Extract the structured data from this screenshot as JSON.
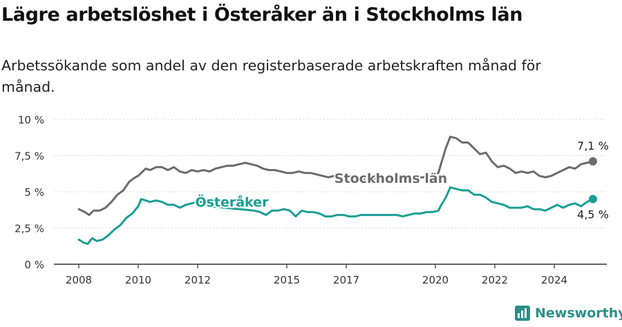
{
  "title": "Lägre arbetslöshet i Österåker än i Stockholms län",
  "subtitle": "Arbetssökande som andel av den registerbaserade arbetskraften månad för månad.",
  "brand": {
    "name": "Newsworthy"
  },
  "colors": {
    "stockholm": "#6b6b6b",
    "osteraker": "#1a9e94",
    "axis": "#333333",
    "brand": "#2c8f8a"
  },
  "chart_data": {
    "type": "line",
    "ylim": [
      0,
      10
    ],
    "xlim": [
      2007.5,
      2025.6
    ],
    "y_ticks": [
      {
        "value": 0,
        "label": "0 %"
      },
      {
        "value": 2.5,
        "label": "2,5 %"
      },
      {
        "value": 5,
        "label": "5 %"
      },
      {
        "value": 7.5,
        "label": "7,5 %"
      },
      {
        "value": 10,
        "label": "10 %"
      }
    ],
    "x_ticks": [
      {
        "value": 2008,
        "label": "2008"
      },
      {
        "value": 2010,
        "label": "2010"
      },
      {
        "value": 2012,
        "label": "2012"
      },
      {
        "value": 2015,
        "label": "2015"
      },
      {
        "value": 2017,
        "label": "2017"
      },
      {
        "value": 2020,
        "label": "2020"
      },
      {
        "value": 2022,
        "label": "2022"
      },
      {
        "value": 2024,
        "label": "2024"
      }
    ],
    "series": [
      {
        "name": "Stockholms län",
        "end_label": "7,1 %",
        "points": [
          [
            2008.0,
            3.8
          ],
          [
            2008.2,
            3.6
          ],
          [
            2008.35,
            3.4
          ],
          [
            2008.5,
            3.7
          ],
          [
            2008.7,
            3.7
          ],
          [
            2008.9,
            3.9
          ],
          [
            2009.1,
            4.3
          ],
          [
            2009.3,
            4.8
          ],
          [
            2009.5,
            5.1
          ],
          [
            2009.7,
            5.7
          ],
          [
            2009.9,
            6.0
          ],
          [
            2010.0,
            6.1
          ],
          [
            2010.1,
            6.3
          ],
          [
            2010.25,
            6.6
          ],
          [
            2010.4,
            6.5
          ],
          [
            2010.6,
            6.7
          ],
          [
            2010.8,
            6.7
          ],
          [
            2011.0,
            6.5
          ],
          [
            2011.2,
            6.7
          ],
          [
            2011.4,
            6.4
          ],
          [
            2011.6,
            6.3
          ],
          [
            2011.8,
            6.5
          ],
          [
            2012.0,
            6.4
          ],
          [
            2012.2,
            6.5
          ],
          [
            2012.4,
            6.4
          ],
          [
            2012.6,
            6.6
          ],
          [
            2012.8,
            6.7
          ],
          [
            2013.0,
            6.8
          ],
          [
            2013.2,
            6.8
          ],
          [
            2013.4,
            6.9
          ],
          [
            2013.6,
            7.0
          ],
          [
            2013.8,
            6.9
          ],
          [
            2014.0,
            6.8
          ],
          [
            2014.2,
            6.6
          ],
          [
            2014.4,
            6.5
          ],
          [
            2014.6,
            6.5
          ],
          [
            2014.8,
            6.4
          ],
          [
            2015.0,
            6.3
          ],
          [
            2015.2,
            6.3
          ],
          [
            2015.4,
            6.4
          ],
          [
            2015.6,
            6.3
          ],
          [
            2015.8,
            6.3
          ],
          [
            2016.0,
            6.2
          ],
          [
            2016.2,
            6.1
          ],
          [
            2016.4,
            6.0
          ],
          [
            2016.6,
            6.1
          ],
          [
            2016.8,
            6.0
          ],
          [
            2017.0,
            6.0
          ],
          [
            2017.2,
            6.0
          ],
          [
            2017.4,
            5.9
          ],
          [
            2019.6,
            6.0
          ],
          [
            2019.8,
            6.1
          ],
          [
            2020.0,
            6.2
          ],
          [
            2020.1,
            6.3
          ],
          [
            2020.2,
            7.0
          ],
          [
            2020.35,
            8.0
          ],
          [
            2020.5,
            8.8
          ],
          [
            2020.7,
            8.7
          ],
          [
            2020.9,
            8.4
          ],
          [
            2021.1,
            8.4
          ],
          [
            2021.3,
            8.0
          ],
          [
            2021.5,
            7.6
          ],
          [
            2021.7,
            7.7
          ],
          [
            2021.9,
            7.1
          ],
          [
            2022.1,
            6.7
          ],
          [
            2022.3,
            6.8
          ],
          [
            2022.5,
            6.6
          ],
          [
            2022.7,
            6.3
          ],
          [
            2022.9,
            6.4
          ],
          [
            2023.1,
            6.3
          ],
          [
            2023.3,
            6.4
          ],
          [
            2023.5,
            6.1
          ],
          [
            2023.7,
            6.0
          ],
          [
            2023.9,
            6.1
          ],
          [
            2024.1,
            6.3
          ],
          [
            2024.3,
            6.5
          ],
          [
            2024.5,
            6.7
          ],
          [
            2024.7,
            6.6
          ],
          [
            2024.9,
            6.9
          ],
          [
            2025.1,
            7.0
          ],
          [
            2025.3,
            7.1
          ]
        ]
      },
      {
        "name": "Österåker",
        "end_label": "4,5 %",
        "points": [
          [
            2008.0,
            1.7
          ],
          [
            2008.15,
            1.5
          ],
          [
            2008.3,
            1.4
          ],
          [
            2008.45,
            1.8
          ],
          [
            2008.6,
            1.6
          ],
          [
            2008.8,
            1.7
          ],
          [
            2009.0,
            2.0
          ],
          [
            2009.2,
            2.4
          ],
          [
            2009.4,
            2.7
          ],
          [
            2009.6,
            3.2
          ],
          [
            2009.8,
            3.5
          ],
          [
            2010.0,
            4.0
          ],
          [
            2010.1,
            4.5
          ],
          [
            2010.25,
            4.4
          ],
          [
            2010.4,
            4.3
          ],
          [
            2010.6,
            4.4
          ],
          [
            2010.8,
            4.3
          ],
          [
            2011.0,
            4.1
          ],
          [
            2011.2,
            4.1
          ],
          [
            2011.4,
            3.9
          ],
          [
            2011.6,
            4.1
          ],
          [
            2011.8,
            4.2
          ],
          [
            2012.0,
            4.3
          ],
          [
            2012.2,
            4.3
          ],
          [
            2012.4,
            4.0
          ],
          [
            2013.9,
            3.7
          ],
          [
            2014.1,
            3.6
          ],
          [
            2014.3,
            3.4
          ],
          [
            2014.5,
            3.7
          ],
          [
            2014.7,
            3.7
          ],
          [
            2014.9,
            3.8
          ],
          [
            2015.1,
            3.7
          ],
          [
            2015.3,
            3.3
          ],
          [
            2015.5,
            3.7
          ],
          [
            2015.7,
            3.6
          ],
          [
            2015.9,
            3.6
          ],
          [
            2016.1,
            3.5
          ],
          [
            2016.3,
            3.3
          ],
          [
            2016.5,
            3.3
          ],
          [
            2016.7,
            3.4
          ],
          [
            2016.9,
            3.4
          ],
          [
            2017.1,
            3.3
          ],
          [
            2017.3,
            3.3
          ],
          [
            2017.5,
            3.4
          ],
          [
            2017.7,
            3.4
          ],
          [
            2017.9,
            3.4
          ],
          [
            2018.1,
            3.4
          ],
          [
            2018.3,
            3.4
          ],
          [
            2018.5,
            3.4
          ],
          [
            2018.7,
            3.4
          ],
          [
            2018.9,
            3.3
          ],
          [
            2019.1,
            3.4
          ],
          [
            2019.3,
            3.5
          ],
          [
            2019.5,
            3.5
          ],
          [
            2019.7,
            3.6
          ],
          [
            2019.9,
            3.6
          ],
          [
            2020.1,
            3.7
          ],
          [
            2020.2,
            4.1
          ],
          [
            2020.35,
            4.6
          ],
          [
            2020.5,
            5.3
          ],
          [
            2020.7,
            5.2
          ],
          [
            2020.9,
            5.1
          ],
          [
            2021.1,
            5.1
          ],
          [
            2021.3,
            4.8
          ],
          [
            2021.5,
            4.8
          ],
          [
            2021.7,
            4.6
          ],
          [
            2021.9,
            4.3
          ],
          [
            2022.1,
            4.2
          ],
          [
            2022.3,
            4.1
          ],
          [
            2022.5,
            3.9
          ],
          [
            2022.7,
            3.9
          ],
          [
            2022.9,
            3.9
          ],
          [
            2023.1,
            4.0
          ],
          [
            2023.3,
            3.8
          ],
          [
            2023.5,
            3.8
          ],
          [
            2023.7,
            3.7
          ],
          [
            2023.9,
            3.9
          ],
          [
            2024.1,
            4.1
          ],
          [
            2024.3,
            3.9
          ],
          [
            2024.5,
            4.1
          ],
          [
            2024.7,
            4.2
          ],
          [
            2024.9,
            4.0
          ],
          [
            2025.1,
            4.3
          ],
          [
            2025.3,
            4.5
          ]
        ]
      }
    ]
  }
}
